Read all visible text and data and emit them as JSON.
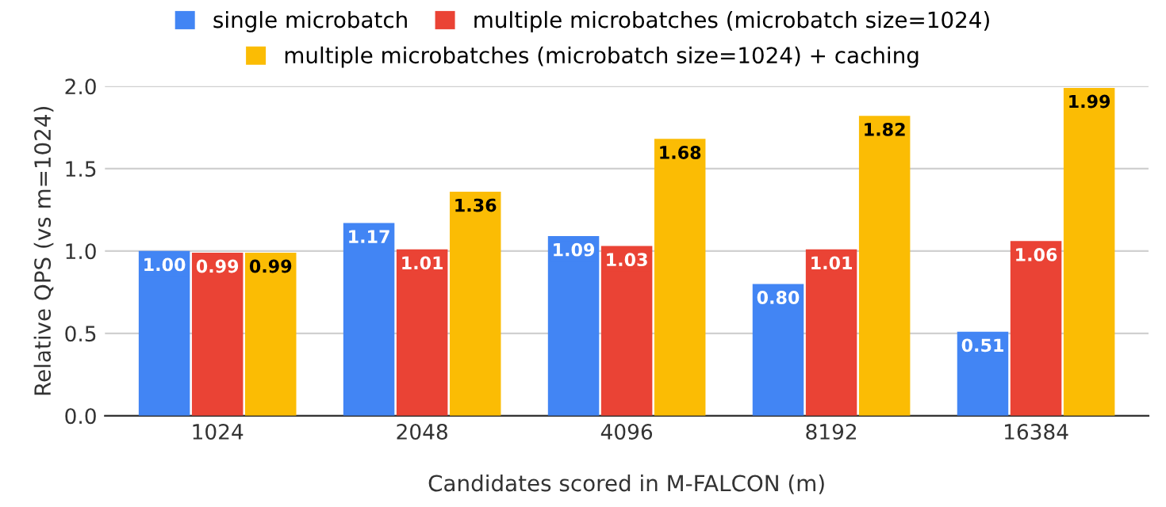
{
  "chart_data": {
    "type": "bar",
    "xlabel": "Candidates scored in M-FALCON (m)",
    "ylabel": "Relative QPS (vs m=1024)",
    "categories": [
      "1024",
      "2048",
      "4096",
      "8192",
      "16384"
    ],
    "series": [
      {
        "name": "single microbatch",
        "color": "#4285f4",
        "values": [
          1.0,
          1.17,
          1.09,
          0.8,
          0.51
        ],
        "value_labels": [
          "1.00",
          "1.17",
          "1.09",
          "0.80",
          "0.51"
        ]
      },
      {
        "name": "multiple microbatches (microbatch size=1024)",
        "color": "#ea4335",
        "values": [
          0.99,
          1.01,
          1.03,
          1.01,
          1.06
        ],
        "value_labels": [
          "0.99",
          "1.01",
          "1.03",
          "1.01",
          "1.06"
        ]
      },
      {
        "name": "multiple microbatches (microbatch size=1024) + caching",
        "color": "#fbbc04",
        "values": [
          0.99,
          1.36,
          1.68,
          1.82,
          1.99
        ],
        "value_labels": [
          "0.99",
          "1.36",
          "1.68",
          "1.82",
          "1.99"
        ]
      }
    ],
    "ylim": [
      0,
      2.0
    ],
    "yticks": [
      {
        "value": 0,
        "label": "0.0"
      },
      {
        "value": 0.5,
        "label": "0.5"
      },
      {
        "value": 1.0,
        "label": "1.0"
      },
      {
        "value": 1.5,
        "label": "1.5"
      },
      {
        "value": 2.0,
        "label": "2.0"
      }
    ],
    "grid": "y",
    "legend": "top"
  }
}
